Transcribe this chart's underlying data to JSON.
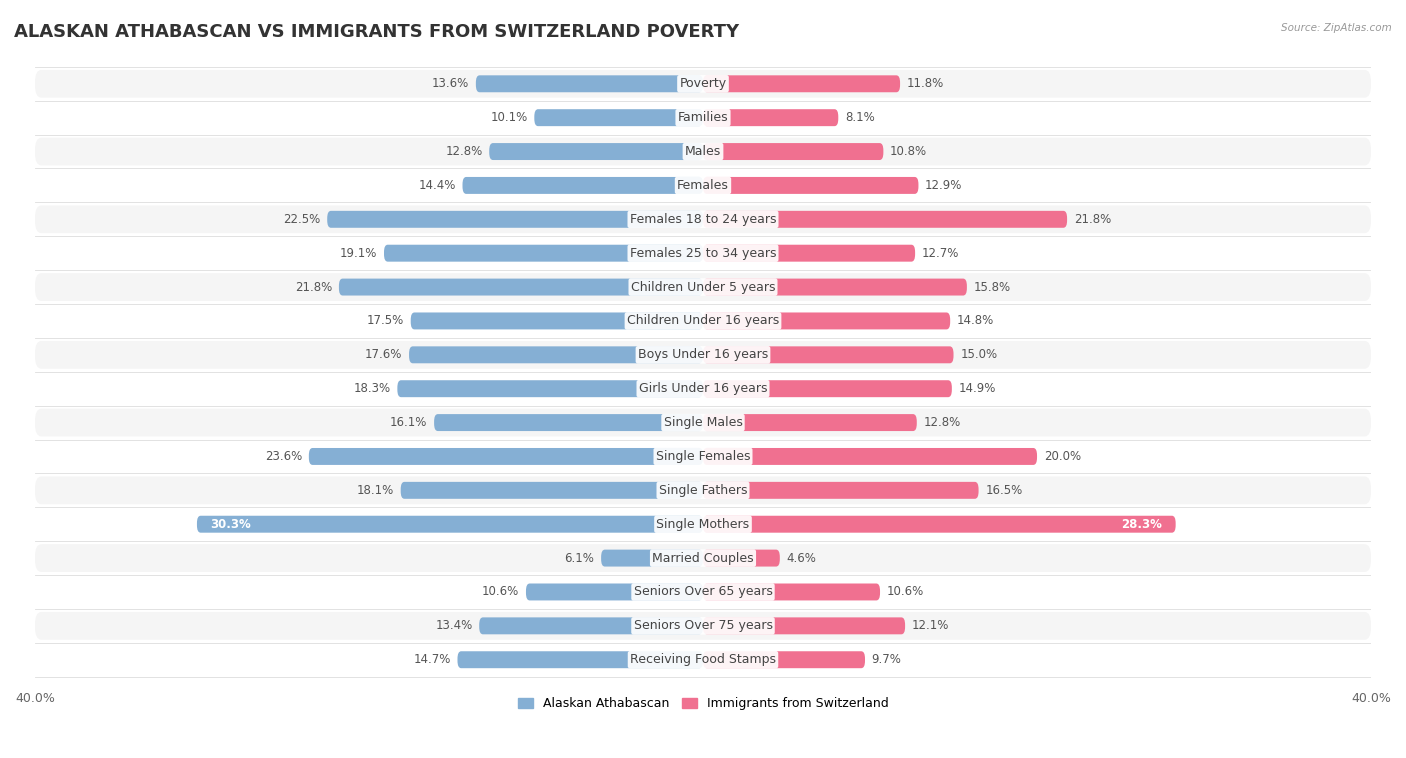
{
  "title": "ALASKAN ATHABASCAN VS IMMIGRANTS FROM SWITZERLAND POVERTY",
  "source": "Source: ZipAtlas.com",
  "categories": [
    "Poverty",
    "Families",
    "Males",
    "Females",
    "Females 18 to 24 years",
    "Females 25 to 34 years",
    "Children Under 5 years",
    "Children Under 16 years",
    "Boys Under 16 years",
    "Girls Under 16 years",
    "Single Males",
    "Single Females",
    "Single Fathers",
    "Single Mothers",
    "Married Couples",
    "Seniors Over 65 years",
    "Seniors Over 75 years",
    "Receiving Food Stamps"
  ],
  "left_values": [
    13.6,
    10.1,
    12.8,
    14.4,
    22.5,
    19.1,
    21.8,
    17.5,
    17.6,
    18.3,
    16.1,
    23.6,
    18.1,
    30.3,
    6.1,
    10.6,
    13.4,
    14.7
  ],
  "right_values": [
    11.8,
    8.1,
    10.8,
    12.9,
    21.8,
    12.7,
    15.8,
    14.8,
    15.0,
    14.9,
    12.8,
    20.0,
    16.5,
    28.3,
    4.6,
    10.6,
    12.1,
    9.7
  ],
  "left_color": "#85afd4",
  "right_color": "#f07090",
  "left_color_light": "#c5daea",
  "right_color_light": "#f8c0cc",
  "left_label": "Alaskan Athabascan",
  "right_label": "Immigrants from Switzerland",
  "xlim": 40.0,
  "background_color": "#ffffff",
  "row_odd_color": "#f5f5f5",
  "row_even_color": "#ffffff",
  "title_fontsize": 13,
  "label_fontsize": 9,
  "value_fontsize": 8.5,
  "axis_fontsize": 9
}
